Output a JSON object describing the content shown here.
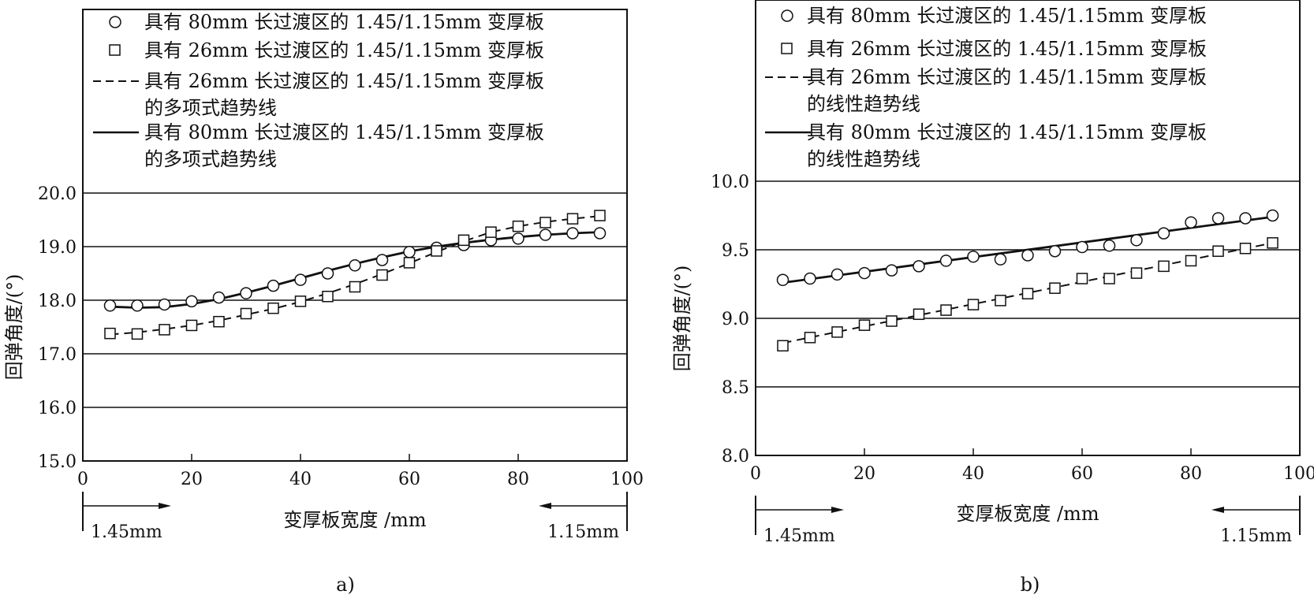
{
  "chart_data": [
    {
      "type": "scatter",
      "panel_label": "a)",
      "xlabel": "变厚板宽度 /mm",
      "ylabel": "回弹角度/(°)",
      "xlim": [
        0,
        100
      ],
      "ylim": [
        15.0,
        20.0
      ],
      "x_ticks": [
        "0",
        "20",
        "40",
        "60",
        "80",
        "100"
      ],
      "y_ticks": [
        "15.0",
        "16.0",
        "17.0",
        "18.0",
        "19.0",
        "20.0"
      ],
      "grid": "horizontal",
      "legend_position": "top",
      "left_marker": "1.45mm",
      "right_marker": "1.15mm",
      "legend": [
        {
          "text": "具有 80mm 长过渡区的 1.45/1.15mm 变厚板",
          "style": "circle"
        },
        {
          "text": "具有 26mm 长过渡区的 1.45/1.15mm 变厚板",
          "style": "square"
        },
        {
          "text": "具有 26mm 长过渡区的 1.45/1.15mm 变厚板",
          "text2": "的多项式趋势线",
          "style": "dashed"
        },
        {
          "text": "具有 80mm 长过渡区的 1.45/1.15mm 变厚板",
          "text2": "的多项式趋势线",
          "style": "solid"
        }
      ],
      "series": [
        {
          "name": "具有 80mm 长过渡区的 1.45/1.15mm 变厚板",
          "marker": "circle",
          "x": [
            5,
            10,
            15,
            20,
            25,
            30,
            35,
            40,
            45,
            50,
            55,
            60,
            65,
            70,
            75,
            80,
            85,
            90,
            95
          ],
          "y": [
            17.9,
            17.9,
            17.92,
            17.98,
            18.05,
            18.13,
            18.27,
            18.38,
            18.5,
            18.65,
            18.75,
            18.9,
            18.98,
            19.03,
            19.12,
            19.15,
            19.22,
            19.25,
            19.25
          ]
        },
        {
          "name": "具有 26mm 长过渡区的 1.45/1.15mm 变厚板",
          "marker": "square",
          "x": [
            5,
            10,
            15,
            20,
            25,
            30,
            35,
            40,
            45,
            50,
            55,
            60,
            65,
            70,
            75,
            80,
            85,
            90,
            95
          ],
          "y": [
            17.38,
            17.37,
            17.45,
            17.53,
            17.6,
            17.75,
            17.85,
            17.98,
            18.07,
            18.25,
            18.47,
            18.7,
            18.92,
            19.12,
            19.27,
            19.38,
            19.45,
            19.52,
            19.58
          ]
        },
        {
          "name": "具有 26mm 长过渡区的 1.45/1.15mm 变厚板 的多项式趋势线",
          "line": "dashed",
          "x": [
            5,
            10,
            15,
            20,
            25,
            30,
            35,
            40,
            45,
            50,
            55,
            60,
            65,
            70,
            75,
            80,
            85,
            90,
            95
          ],
          "y": [
            17.36,
            17.4,
            17.46,
            17.53,
            17.62,
            17.73,
            17.84,
            17.97,
            18.13,
            18.3,
            18.49,
            18.69,
            18.9,
            19.1,
            19.27,
            19.38,
            19.46,
            19.52,
            19.57
          ]
        },
        {
          "name": "具有 80mm 长过渡区的 1.45/1.15mm 变厚板 的多项式趋势线",
          "line": "solid",
          "x": [
            5,
            10,
            15,
            20,
            25,
            30,
            35,
            40,
            45,
            50,
            55,
            60,
            65,
            70,
            75,
            80,
            85,
            90,
            95
          ],
          "y": [
            17.88,
            17.86,
            17.87,
            17.93,
            18.02,
            18.14,
            18.27,
            18.41,
            18.55,
            18.68,
            18.8,
            18.91,
            19.0,
            19.07,
            19.13,
            19.18,
            19.22,
            19.25,
            19.27
          ]
        }
      ]
    },
    {
      "type": "scatter",
      "panel_label": "b)",
      "xlabel": "变厚板宽度 /mm",
      "ylabel": "回弹角度/(°)",
      "xlim": [
        0,
        100
      ],
      "ylim": [
        8.0,
        10.0
      ],
      "x_ticks": [
        "0",
        "20",
        "40",
        "60",
        "80",
        "100"
      ],
      "y_ticks": [
        "8.0",
        "8.5",
        "9.0",
        "9.5",
        "10.0"
      ],
      "grid": "horizontal",
      "legend_position": "top",
      "left_marker": "1.45mm",
      "right_marker": "1.15mm",
      "legend": [
        {
          "text": "具有 80mm 长过渡区的 1.45/1.15mm 变厚板",
          "style": "circle"
        },
        {
          "text": "具有 26mm 长过渡区的 1.45/1.15mm 变厚板",
          "style": "square"
        },
        {
          "text": "具有 26mm 长过渡区的 1.45/1.15mm 变厚板",
          "text2": "的线性趋势线",
          "style": "dashed"
        },
        {
          "text": "具有 80mm 长过渡区的 1.45/1.15mm 变厚板",
          "text2": "的线性趋势线",
          "style": "solid"
        }
      ],
      "series": [
        {
          "name": "具有 80mm 长过渡区的 1.45/1.15mm 变厚板",
          "marker": "circle",
          "x": [
            5,
            10,
            15,
            20,
            25,
            30,
            35,
            40,
            45,
            50,
            55,
            60,
            65,
            70,
            75,
            80,
            85,
            90,
            95
          ],
          "y": [
            9.28,
            9.29,
            9.32,
            9.33,
            9.35,
            9.38,
            9.42,
            9.45,
            9.43,
            9.46,
            9.49,
            9.52,
            9.53,
            9.57,
            9.62,
            9.7,
            9.73,
            9.73,
            9.75
          ]
        },
        {
          "name": "具有 26mm 长过渡区的 1.45/1.15mm 变厚板",
          "marker": "square",
          "x": [
            5,
            10,
            15,
            20,
            25,
            30,
            35,
            40,
            45,
            50,
            55,
            60,
            65,
            70,
            75,
            80,
            85,
            90,
            95
          ],
          "y": [
            8.8,
            8.86,
            8.9,
            8.95,
            8.98,
            9.03,
            9.06,
            9.1,
            9.13,
            9.18,
            9.22,
            9.29,
            9.29,
            9.33,
            9.38,
            9.42,
            9.49,
            9.51,
            9.55
          ]
        },
        {
          "name": "具有 26mm 长过渡区的 1.45/1.15mm 变厚板 的线性趋势线",
          "line": "dashed",
          "x": [
            5,
            95
          ],
          "y": [
            8.82,
            9.55
          ]
        },
        {
          "name": "具有 80mm 长过渡区的 1.45/1.15mm 变厚板 的线性趋势线",
          "line": "solid",
          "x": [
            5,
            95
          ],
          "y": [
            9.26,
            9.74
          ]
        }
      ]
    }
  ]
}
